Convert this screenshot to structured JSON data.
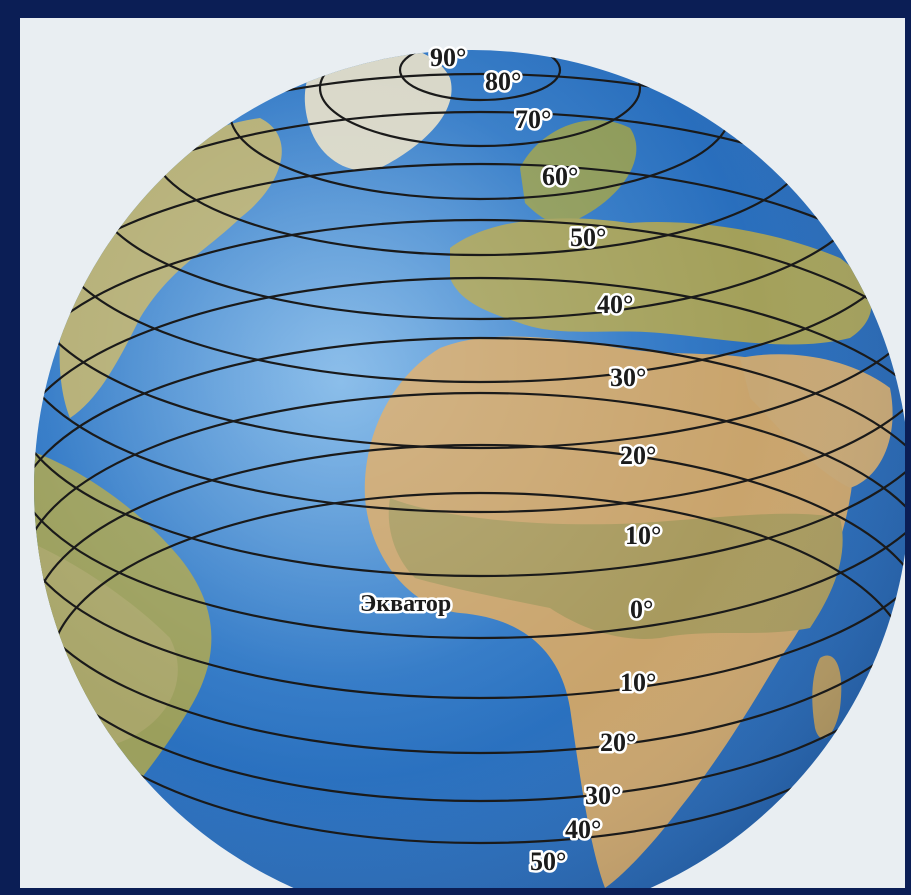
{
  "map": {
    "equator_label": "Экватор",
    "latitude_labels": [
      "90°",
      "80°",
      "70°",
      "60°",
      "50°",
      "40°",
      "30°",
      "20°",
      "10°",
      "0°",
      "10°",
      "20°",
      "30°",
      "40°",
      "50°"
    ]
  },
  "colors": {
    "frame": "#0b1e55",
    "background": "#e9eef2",
    "ocean": "#2f78c6",
    "ocean_light": "#8fc0e6",
    "land": "#c9a46c",
    "land_green": "#9aa35a",
    "lines": "#1a1a1a"
  }
}
